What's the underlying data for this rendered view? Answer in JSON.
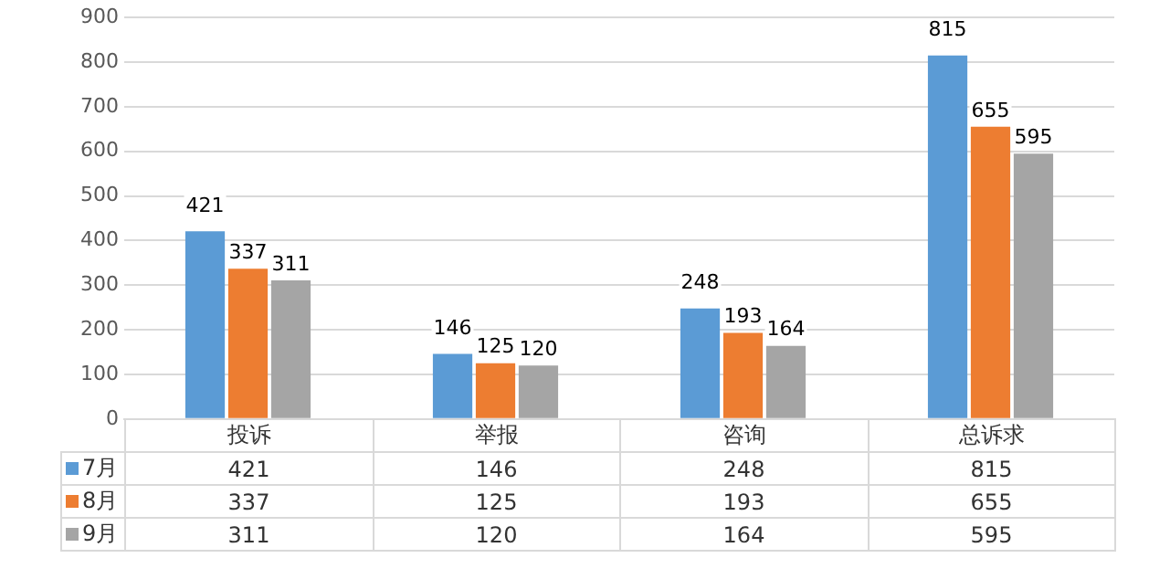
{
  "chart_data": {
    "type": "bar",
    "categories": [
      "投诉",
      "举报",
      "咨询",
      "总诉求"
    ],
    "series": [
      {
        "name": "7月",
        "color": "#5b9bd5",
        "values": [
          421,
          146,
          248,
          815
        ],
        "value_labels": [
          "421",
          "146",
          "248",
          "815"
        ]
      },
      {
        "name": "8月",
        "color": "#ed7d31",
        "values": [
          337,
          125,
          193,
          655
        ],
        "value_labels": [
          "337",
          "125",
          "193",
          "655"
        ]
      },
      {
        "name": "9月",
        "color": "#a5a5a5",
        "values": [
          311,
          120,
          164,
          595
        ],
        "value_labels": [
          "311",
          "120",
          "164",
          "595"
        ]
      }
    ],
    "ylim": [
      0,
      900
    ],
    "yticks": [
      0,
      100,
      200,
      300,
      400,
      500,
      600,
      700,
      800,
      900
    ],
    "grid": "y",
    "legend": "bottom",
    "data_labels": true
  }
}
